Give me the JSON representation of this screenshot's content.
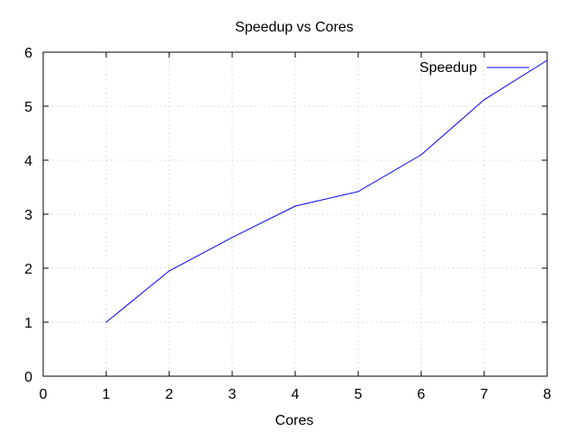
{
  "chart_data": {
    "type": "line",
    "title": "Speedup vs Cores",
    "xlabel": "Cores",
    "ylabel": "",
    "xlim": [
      0,
      8
    ],
    "ylim": [
      0,
      6
    ],
    "xticks": [
      0,
      1,
      2,
      3,
      4,
      5,
      6,
      7,
      8
    ],
    "yticks": [
      0,
      1,
      2,
      3,
      4,
      5,
      6
    ],
    "grid": true,
    "legend_position": "top-right",
    "series": [
      {
        "name": "Speedup",
        "color": "#0000ff",
        "x": [
          1,
          2,
          3,
          4,
          5,
          6,
          7,
          8
        ],
        "y": [
          1.0,
          1.95,
          2.57,
          3.15,
          3.42,
          4.1,
          5.12,
          5.85
        ]
      }
    ]
  }
}
